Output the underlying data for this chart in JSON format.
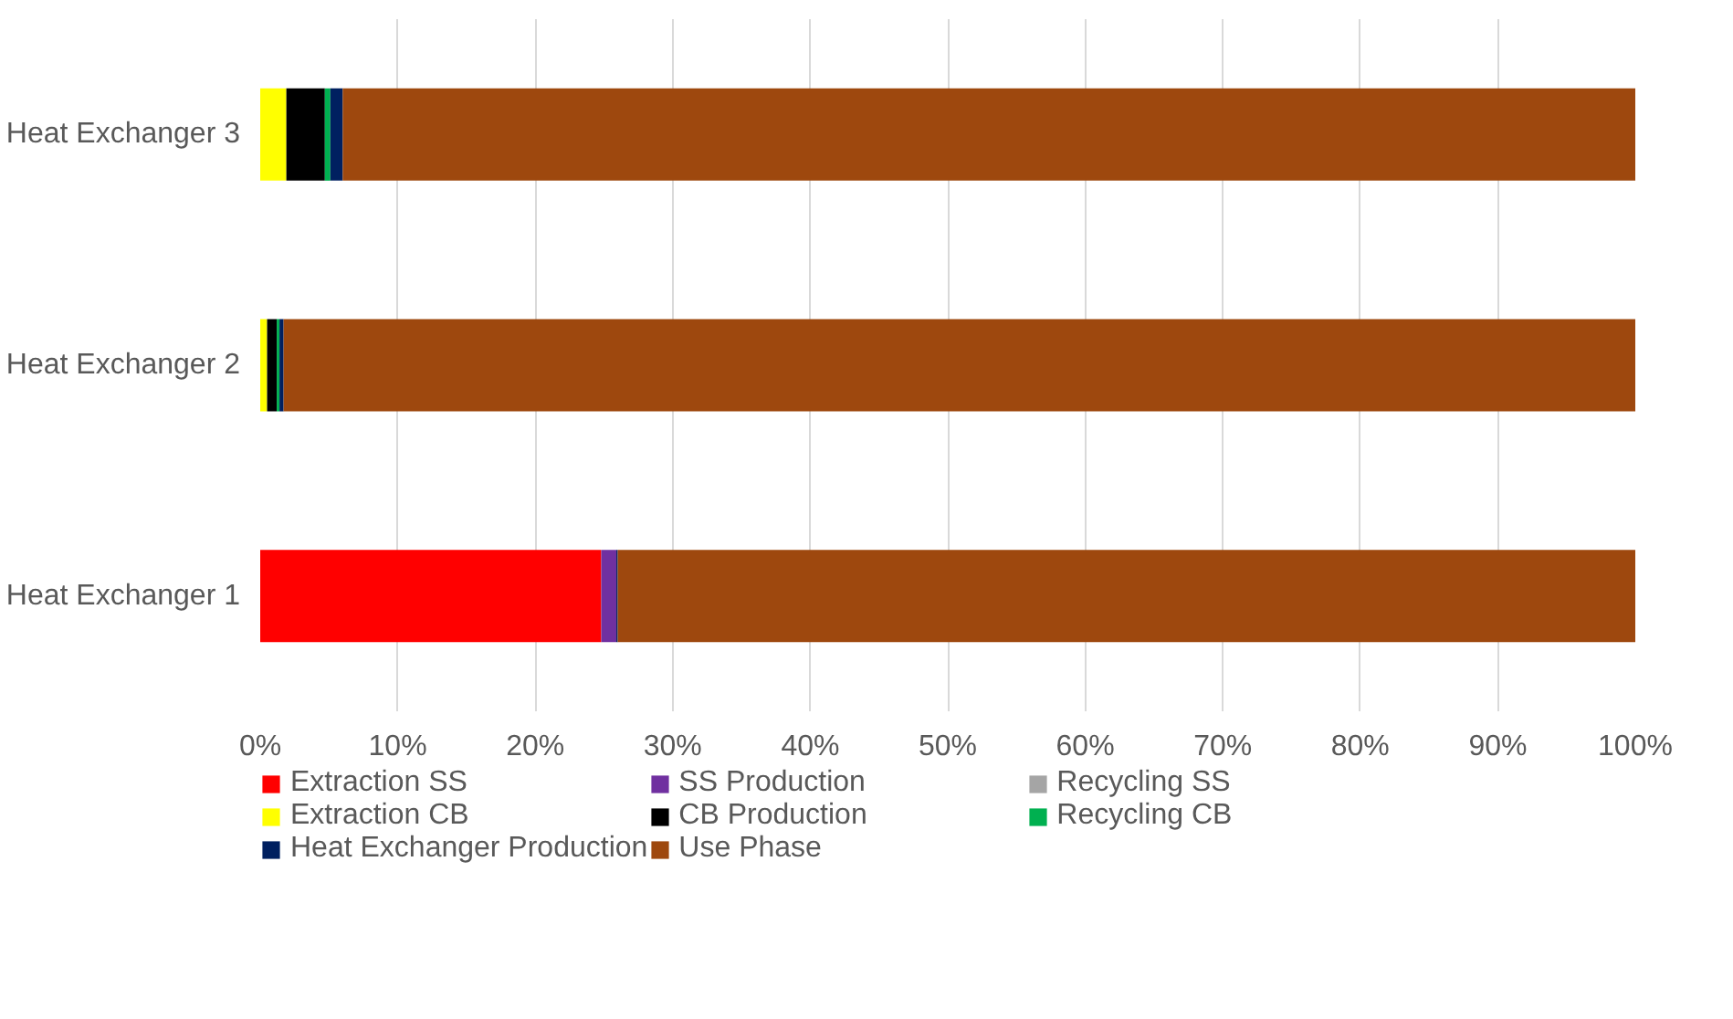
{
  "chart_data": {
    "type": "bar",
    "orientation": "horizontal",
    "stacked": true,
    "categories": [
      "Heat Exchanger 3",
      "Heat Exchanger 2",
      "Heat Exchanger 1"
    ],
    "series": [
      {
        "name": "Extraction SS",
        "color": "#ff0000",
        "values": [
          0,
          0,
          24.8
        ]
      },
      {
        "name": "SS Production",
        "color": "#7030a0",
        "values": [
          0,
          0,
          1.1
        ]
      },
      {
        "name": "Recycling SS",
        "color": "#a5a5a5",
        "values": [
          0,
          0,
          0
        ]
      },
      {
        "name": "Extraction CB",
        "color": "#ffff00",
        "values": [
          1.9,
          0.5,
          0
        ]
      },
      {
        "name": "CB Production",
        "color": "#000000",
        "values": [
          2.8,
          0.7,
          0
        ]
      },
      {
        "name": "Recycling CB",
        "color": "#00b050",
        "values": [
          0.4,
          0.2,
          0
        ]
      },
      {
        "name": "Heat Exchanger Production",
        "color": "#002060",
        "values": [
          0.9,
          0.3,
          0.1
        ]
      },
      {
        "name": "Use Phase",
        "color": "#9e480e",
        "values": [
          94.0,
          98.3,
          74.0
        ]
      }
    ],
    "xlim": [
      0,
      100
    ],
    "xticks": [
      {
        "value": 0,
        "label": "0%"
      },
      {
        "value": 10,
        "label": "10%"
      },
      {
        "value": 20,
        "label": "20%"
      },
      {
        "value": 30,
        "label": "30%"
      },
      {
        "value": 40,
        "label": "40%"
      },
      {
        "value": 50,
        "label": "50%"
      },
      {
        "value": 60,
        "label": "60%"
      },
      {
        "value": 70,
        "label": "70%"
      },
      {
        "value": 80,
        "label": "80%"
      },
      {
        "value": 90,
        "label": "90%"
      },
      {
        "value": 100,
        "label": "100%"
      }
    ],
    "grid": "x",
    "legend": "bottom"
  }
}
